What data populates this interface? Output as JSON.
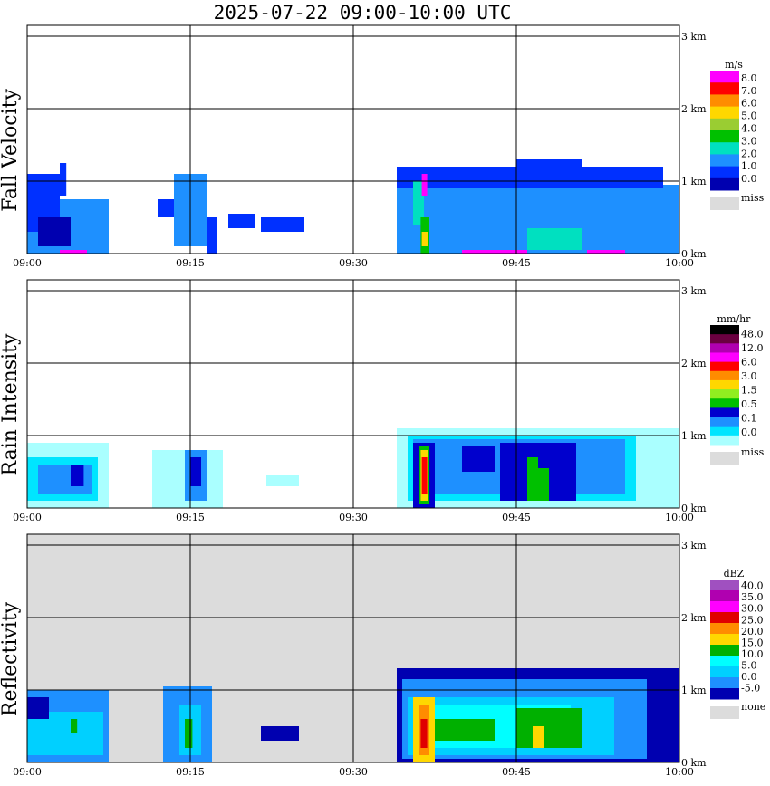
{
  "title": "2025-07-22   09:00-10:00 UTC",
  "chart_data": [
    {
      "type": "heatmap",
      "ylabel": "Fall Velocity",
      "unit": "m/s",
      "x_ticks": [
        "09:00",
        "09:15",
        "09:30",
        "09:45",
        "10:00"
      ],
      "y_ticks": [
        "0 km",
        "1 km",
        "2 km",
        "3 km"
      ],
      "xlim": [
        "09:00",
        "10:00"
      ],
      "ylim_km": [
        0,
        3
      ],
      "colorbar": {
        "labels": [
          "8.0",
          "7.0",
          "6.0",
          "5.0",
          "4.0",
          "3.0",
          "2.0",
          "1.0",
          "0.0"
        ],
        "colors": [
          "#ff00ff",
          "#ff0000",
          "#ff8c00",
          "#ffd700",
          "#9acd32",
          "#00c000",
          "#00e0c0",
          "#1e90ff",
          "#0030ff",
          "#0000b0"
        ],
        "miss_label": "miss",
        "miss_color": "#dcdcdc"
      },
      "cells": [
        {
          "t0": 0.0,
          "t1": 7.5,
          "h0": 0.0,
          "h1": 0.75,
          "color": "#1e90ff"
        },
        {
          "t0": 0.0,
          "t1": 3.0,
          "h0": 0.3,
          "h1": 1.1,
          "color": "#0030ff"
        },
        {
          "t0": 3.0,
          "t1": 3.6,
          "h0": 0.8,
          "h1": 1.25,
          "color": "#0030ff"
        },
        {
          "t0": 1.0,
          "t1": 4.0,
          "h0": 0.1,
          "h1": 0.5,
          "color": "#0000b0"
        },
        {
          "t0": 3.0,
          "t1": 5.5,
          "h0": 0.0,
          "h1": 0.05,
          "color": "#ff00ff"
        },
        {
          "t0": 12.0,
          "t1": 14.5,
          "h0": 0.5,
          "h1": 0.75,
          "color": "#0030ff"
        },
        {
          "t0": 13.5,
          "t1": 16.5,
          "h0": 0.1,
          "h1": 1.1,
          "color": "#1e90ff"
        },
        {
          "t0": 16.5,
          "t1": 17.5,
          "h0": 0.0,
          "h1": 0.5,
          "color": "#0030ff"
        },
        {
          "t0": 18.5,
          "t1": 21.0,
          "h0": 0.35,
          "h1": 0.55,
          "color": "#0030ff"
        },
        {
          "t0": 21.5,
          "t1": 25.5,
          "h0": 0.3,
          "h1": 0.5,
          "color": "#0030ff"
        },
        {
          "t0": 34.0,
          "t1": 60.0,
          "h0": 0.0,
          "h1": 0.95,
          "color": "#1e90ff"
        },
        {
          "t0": 34.0,
          "t1": 58.5,
          "h0": 0.9,
          "h1": 1.2,
          "color": "#0030ff"
        },
        {
          "t0": 45.0,
          "t1": 51.0,
          "h0": 1.1,
          "h1": 1.3,
          "color": "#0030ff"
        },
        {
          "t0": 35.5,
          "t1": 36.5,
          "h0": 0.4,
          "h1": 1.0,
          "color": "#00e0c0"
        },
        {
          "t0": 36.2,
          "t1": 37.0,
          "h0": 0.0,
          "h1": 0.5,
          "color": "#00c000"
        },
        {
          "t0": 36.3,
          "t1": 36.8,
          "h0": 0.8,
          "h1": 1.1,
          "color": "#ff00ff"
        },
        {
          "t0": 36.3,
          "t1": 36.9,
          "h0": 0.1,
          "h1": 0.3,
          "color": "#ffd700"
        },
        {
          "t0": 46.0,
          "t1": 51.0,
          "h0": 0.05,
          "h1": 0.35,
          "color": "#00e0c0"
        },
        {
          "t0": 40.0,
          "t1": 46.0,
          "h0": 0.0,
          "h1": 0.05,
          "color": "#ff00ff"
        },
        {
          "t0": 51.5,
          "t1": 55.0,
          "h0": 0.0,
          "h1": 0.05,
          "color": "#ff00ff"
        }
      ]
    },
    {
      "type": "heatmap",
      "ylabel": "Rain Intensity",
      "unit": "mm/hr",
      "x_ticks": [
        "09:00",
        "09:15",
        "09:30",
        "09:45",
        "10:00"
      ],
      "y_ticks": [
        "0 km",
        "1 km",
        "2 km",
        "3 km"
      ],
      "xlim": [
        "09:00",
        "10:00"
      ],
      "ylim_km": [
        0,
        3
      ],
      "colorbar": {
        "labels": [
          "48.0",
          "12.0",
          "6.0",
          "3.0",
          "1.5",
          "0.5",
          "0.1",
          "0.0"
        ],
        "colors": [
          "#000000",
          "#6a0040",
          "#b000b0",
          "#ff00ff",
          "#ff0000",
          "#ff8c00",
          "#ffd700",
          "#90ee20",
          "#00c000",
          "#0000cd",
          "#1e90ff",
          "#00e5ff",
          "#aaffff"
        ],
        "miss_label": "miss",
        "miss_color": "#dcdcdc"
      },
      "cells": [
        {
          "t0": 0.0,
          "t1": 7.5,
          "h0": 0.0,
          "h1": 0.9,
          "color": "#aaffff"
        },
        {
          "t0": 0.0,
          "t1": 6.5,
          "h0": 0.1,
          "h1": 0.7,
          "color": "#00e5ff"
        },
        {
          "t0": 1.0,
          "t1": 6.0,
          "h0": 0.2,
          "h1": 0.6,
          "color": "#1e90ff"
        },
        {
          "t0": 4.0,
          "t1": 5.2,
          "h0": 0.3,
          "h1": 0.6,
          "color": "#0000cd"
        },
        {
          "t0": 11.5,
          "t1": 18.0,
          "h0": 0.0,
          "h1": 0.8,
          "color": "#aaffff"
        },
        {
          "t0": 14.5,
          "t1": 16.5,
          "h0": 0.1,
          "h1": 0.8,
          "color": "#1e90ff"
        },
        {
          "t0": 15.0,
          "t1": 16.0,
          "h0": 0.3,
          "h1": 0.7,
          "color": "#0000cd"
        },
        {
          "t0": 22.0,
          "t1": 25.0,
          "h0": 0.3,
          "h1": 0.45,
          "color": "#aaffff"
        },
        {
          "t0": 34.0,
          "t1": 60.0,
          "h0": 0.0,
          "h1": 1.1,
          "color": "#aaffff"
        },
        {
          "t0": 35.0,
          "t1": 56.0,
          "h0": 0.1,
          "h1": 1.0,
          "color": "#00e5ff"
        },
        {
          "t0": 35.5,
          "t1": 55.0,
          "h0": 0.2,
          "h1": 0.95,
          "color": "#1e90ff"
        },
        {
          "t0": 40.0,
          "t1": 43.0,
          "h0": 0.5,
          "h1": 0.85,
          "color": "#0000cd"
        },
        {
          "t0": 43.5,
          "t1": 50.5,
          "h0": 0.1,
          "h1": 0.9,
          "color": "#0000cd"
        },
        {
          "t0": 35.5,
          "t1": 37.5,
          "h0": 0.0,
          "h1": 0.9,
          "color": "#0000cd"
        },
        {
          "t0": 36.0,
          "t1": 37.0,
          "h0": 0.05,
          "h1": 0.85,
          "color": "#00c000"
        },
        {
          "t0": 36.2,
          "t1": 36.9,
          "h0": 0.1,
          "h1": 0.8,
          "color": "#ffd700"
        },
        {
          "t0": 36.3,
          "t1": 36.8,
          "h0": 0.2,
          "h1": 0.7,
          "color": "#ff0000"
        },
        {
          "t0": 46.0,
          "t1": 47.0,
          "h0": 0.1,
          "h1": 0.7,
          "color": "#00c000"
        },
        {
          "t0": 47.0,
          "t1": 48.0,
          "h0": 0.1,
          "h1": 0.55,
          "color": "#00c000"
        }
      ]
    },
    {
      "type": "heatmap",
      "ylabel": "Reflectivity",
      "unit": "dBZ",
      "x_ticks": [
        "09:00",
        "09:15",
        "09:30",
        "09:45",
        "10:00"
      ],
      "y_ticks": [
        "0 km",
        "1 km",
        "2 km",
        "3 km"
      ],
      "xlim": [
        "09:00",
        "10:00"
      ],
      "ylim_km": [
        0,
        3
      ],
      "background_color": "#dcdcdc",
      "colorbar": {
        "labels": [
          "40.0",
          "35.0",
          "30.0",
          "25.0",
          "20.0",
          "15.0",
          "10.0",
          "5.0",
          "0.0",
          "-5.0"
        ],
        "colors": [
          "#a050c0",
          "#b000b0",
          "#ff00ff",
          "#e00000",
          "#ff8c00",
          "#ffd700",
          "#00b000",
          "#00ffff",
          "#00d0ff",
          "#1e90ff",
          "#0000b0"
        ],
        "miss_label": "none",
        "miss_color": "#dcdcdc"
      },
      "cells": [
        {
          "t0": 0.0,
          "t1": 7.5,
          "h0": 0.0,
          "h1": 1.0,
          "color": "#1e90ff"
        },
        {
          "t0": 0.0,
          "t1": 7.0,
          "h0": 0.1,
          "h1": 0.7,
          "color": "#00d0ff"
        },
        {
          "t0": 4.0,
          "t1": 4.6,
          "h0": 0.4,
          "h1": 0.6,
          "color": "#00b000"
        },
        {
          "t0": 0.0,
          "t1": 2.0,
          "h0": 0.6,
          "h1": 0.9,
          "color": "#0000b0"
        },
        {
          "t0": 12.5,
          "t1": 17.0,
          "h0": 0.0,
          "h1": 1.05,
          "color": "#1e90ff"
        },
        {
          "t0": 14.0,
          "t1": 16.0,
          "h0": 0.1,
          "h1": 0.8,
          "color": "#00d0ff"
        },
        {
          "t0": 14.5,
          "t1": 15.2,
          "h0": 0.2,
          "h1": 0.6,
          "color": "#00b000"
        },
        {
          "t0": 21.5,
          "t1": 25.0,
          "h0": 0.3,
          "h1": 0.5,
          "color": "#0000b0"
        },
        {
          "t0": 34.0,
          "t1": 60.0,
          "h0": 0.0,
          "h1": 1.3,
          "color": "#0000b0"
        },
        {
          "t0": 34.5,
          "t1": 57.0,
          "h0": 0.05,
          "h1": 1.15,
          "color": "#1e90ff"
        },
        {
          "t0": 35.0,
          "t1": 54.0,
          "h0": 0.1,
          "h1": 0.9,
          "color": "#00d0ff"
        },
        {
          "t0": 35.5,
          "t1": 50.0,
          "h0": 0.2,
          "h1": 0.8,
          "color": "#00ffff"
        },
        {
          "t0": 37.0,
          "t1": 43.0,
          "h0": 0.3,
          "h1": 0.6,
          "color": "#00b000"
        },
        {
          "t0": 45.0,
          "t1": 51.0,
          "h0": 0.2,
          "h1": 0.75,
          "color": "#00b000"
        },
        {
          "t0": 35.5,
          "t1": 37.5,
          "h0": 0.0,
          "h1": 0.9,
          "color": "#ffd700"
        },
        {
          "t0": 36.0,
          "t1": 37.0,
          "h0": 0.1,
          "h1": 0.8,
          "color": "#ff8c00"
        },
        {
          "t0": 36.2,
          "t1": 36.8,
          "h0": 0.2,
          "h1": 0.6,
          "color": "#e00000"
        },
        {
          "t0": 46.5,
          "t1": 47.5,
          "h0": 0.2,
          "h1": 0.5,
          "color": "#ffd700"
        }
      ]
    }
  ]
}
